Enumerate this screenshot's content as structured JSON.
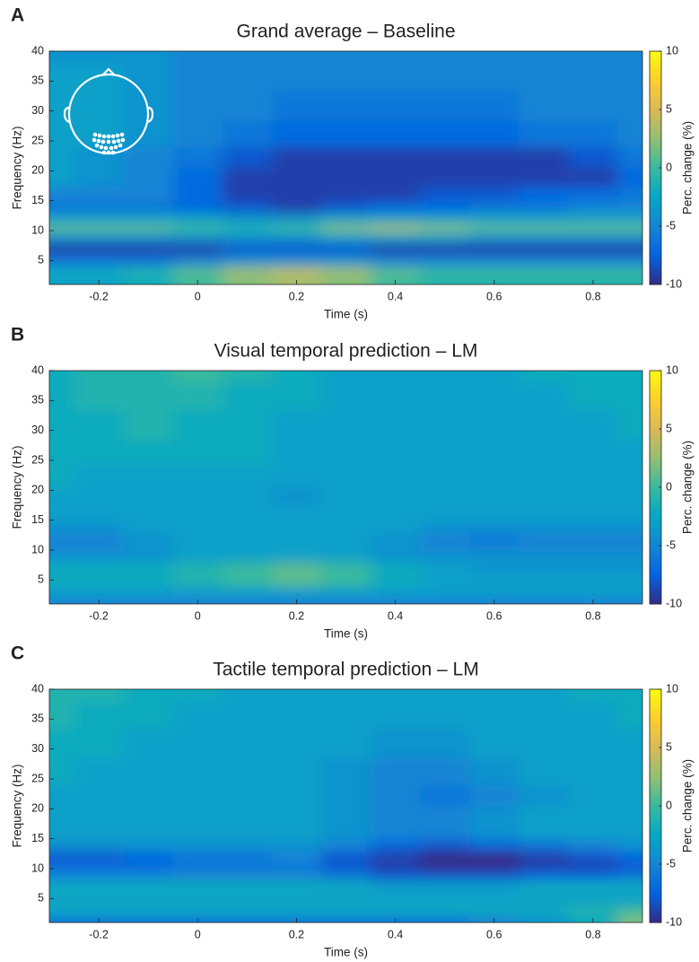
{
  "chart_data": [
    {
      "type": "heatmap",
      "panel": "A",
      "title": "Grand average – Baseline",
      "x_label": "Time (s)",
      "y_label": "Frequency (Hz)",
      "colorbar_label": "Perc. change (%)",
      "colormap": "parula",
      "x": [
        -0.3,
        -0.2,
        -0.1,
        0,
        0.1,
        0.2,
        0.3,
        0.4,
        0.5,
        0.6,
        0.7,
        0.8,
        0.9
      ],
      "y": [
        1.5,
        3,
        5,
        7,
        9,
        10.5,
        12,
        14,
        16,
        19,
        22,
        26,
        31,
        36,
        40
      ],
      "values": [
        [
          -3,
          -3,
          -2,
          0,
          2,
          3,
          2,
          0,
          -1,
          -1,
          -1,
          -1,
          -1
        ],
        [
          -2,
          -2,
          -1,
          1,
          3,
          4,
          3,
          1,
          0,
          0,
          0,
          0,
          0
        ],
        [
          -6,
          -6,
          -6,
          -5,
          -4,
          -4,
          -4,
          -5,
          -5,
          -5,
          -5,
          -5,
          -5
        ],
        [
          -9,
          -9,
          -9,
          -9,
          -8,
          -8,
          -8,
          -9,
          -9,
          -9,
          -9,
          -9,
          -9
        ],
        [
          -4,
          -4,
          -4,
          -4,
          -4,
          -4,
          -3,
          -3,
          -3,
          -4,
          -4,
          -4,
          -4
        ],
        [
          1,
          1,
          1,
          0,
          -1,
          0,
          2,
          3,
          2,
          1,
          1,
          1,
          1
        ],
        [
          -3,
          -3,
          -3,
          -3,
          -4,
          -4,
          -3,
          -3,
          -3,
          -3,
          -3,
          -3,
          -3
        ],
        [
          -6,
          -6,
          -6,
          -7,
          -8,
          -9,
          -8,
          -7,
          -7,
          -6,
          -6,
          -5,
          -5
        ],
        [
          -5,
          -5,
          -5,
          -7,
          -9,
          -9,
          -9,
          -9,
          -8,
          -8,
          -7,
          -7,
          -6
        ],
        [
          -3,
          -4,
          -5,
          -7,
          -9,
          -9,
          -9,
          -9,
          -9,
          -9,
          -9,
          -9,
          -7
        ],
        [
          -3,
          -4,
          -5,
          -6,
          -8,
          -9,
          -9,
          -9,
          -9,
          -9,
          -9,
          -8,
          -6
        ],
        [
          -3,
          -3,
          -4,
          -5,
          -6,
          -7,
          -7,
          -7,
          -7,
          -7,
          -6,
          -6,
          -5
        ],
        [
          -3,
          -3,
          -4,
          -5,
          -5,
          -6,
          -6,
          -6,
          -6,
          -6,
          -5,
          -5,
          -5
        ],
        [
          -3,
          -3,
          -4,
          -5,
          -5,
          -5,
          -5,
          -5,
          -5,
          -5,
          -5,
          -5,
          -5
        ],
        [
          -4,
          -4,
          -4,
          -5,
          -5,
          -5,
          -5,
          -5,
          -5,
          -5,
          -5,
          -5,
          -5
        ]
      ],
      "xlim": [
        -0.3,
        0.9
      ],
      "ylim": [
        1,
        40
      ],
      "clim": [
        -10,
        10
      ],
      "xticks": [
        -0.2,
        0,
        0.2,
        0.4,
        0.6,
        0.8
      ],
      "yticks": [
        5,
        10,
        15,
        20,
        25,
        30,
        35,
        40
      ],
      "cticks": [
        -10,
        -5,
        0,
        5,
        10
      ]
    },
    {
      "type": "heatmap",
      "panel": "B",
      "title": "Visual temporal prediction – LM",
      "x_label": "Time (s)",
      "y_label": "Frequency (Hz)",
      "colorbar_label": "Perc. change (%)",
      "colormap": "parula",
      "x": [
        -0.3,
        -0.2,
        -0.1,
        0,
        0.1,
        0.2,
        0.3,
        0.4,
        0.5,
        0.6,
        0.7,
        0.8,
        0.9
      ],
      "y": [
        1.5,
        3,
        5,
        7,
        9,
        10.5,
        12,
        14,
        16,
        19,
        22,
        26,
        31,
        36,
        40
      ],
      "values": [
        [
          -5,
          -5,
          -5,
          -5,
          -5,
          -5,
          -5,
          -5,
          -5,
          -5,
          -5,
          -5,
          -5
        ],
        [
          -3,
          -3,
          -3,
          -3,
          -3,
          -3,
          -3,
          -3,
          -3,
          -3,
          -3,
          -3,
          -3
        ],
        [
          -2,
          -2,
          -2,
          -1,
          0,
          1,
          0,
          -2,
          -3,
          -3,
          -3,
          -3,
          -3
        ],
        [
          -2,
          -2,
          -2,
          -1,
          0,
          1,
          0,
          -2,
          -3,
          -4,
          -4,
          -4,
          -4
        ],
        [
          -4,
          -4,
          -4,
          -3,
          -3,
          -3,
          -3,
          -4,
          -4,
          -4,
          -4,
          -4,
          -4
        ],
        [
          -5,
          -5,
          -4,
          -3,
          -3,
          -3,
          -3,
          -4,
          -5,
          -5,
          -5,
          -5,
          -5
        ],
        [
          -5,
          -5,
          -4,
          -3,
          -3,
          -3,
          -3,
          -4,
          -5,
          -6,
          -5,
          -5,
          -5
        ],
        [
          -4,
          -4,
          -3,
          -3,
          -3,
          -3,
          -3,
          -3,
          -4,
          -4,
          -4,
          -4,
          -4
        ],
        [
          -3,
          -3,
          -3,
          -3,
          -3,
          -3,
          -3,
          -3,
          -3,
          -3,
          -3,
          -3,
          -3
        ],
        [
          -3,
          -3,
          -3,
          -3,
          -3,
          -4,
          -3,
          -3,
          -3,
          -3,
          -3,
          -3,
          -3
        ],
        [
          -2,
          -3,
          -3,
          -3,
          -3,
          -3,
          -3,
          -3,
          -3,
          -3,
          -3,
          -3,
          -3
        ],
        [
          -2,
          -2,
          -2,
          -2,
          -2,
          -3,
          -3,
          -3,
          -3,
          -3,
          -3,
          -3,
          -3
        ],
        [
          -2,
          -2,
          -1,
          -2,
          -2,
          -3,
          -3,
          -3,
          -3,
          -3,
          -3,
          -3,
          -2
        ],
        [
          -2,
          -1,
          -1,
          -1,
          -2,
          -2,
          -3,
          -3,
          -3,
          -3,
          -3,
          -2,
          -2
        ],
        [
          -2,
          -1,
          -1,
          0,
          -1,
          -2,
          -3,
          -3,
          -3,
          -3,
          -2,
          -2,
          -2
        ]
      ],
      "xlim": [
        -0.3,
        0.9
      ],
      "ylim": [
        1,
        40
      ],
      "clim": [
        -10,
        10
      ],
      "xticks": [
        -0.2,
        0,
        0.2,
        0.4,
        0.6,
        0.8
      ],
      "yticks": [
        5,
        10,
        15,
        20,
        25,
        30,
        35,
        40
      ],
      "cticks": [
        -10,
        -5,
        0,
        5,
        10
      ]
    },
    {
      "type": "heatmap",
      "panel": "C",
      "title": "Tactile temporal prediction – LM",
      "x_label": "Time (s)",
      "y_label": "Frequency (Hz)",
      "colorbar_label": "Perc. change (%)",
      "colormap": "parula",
      "x": [
        -0.3,
        -0.2,
        -0.1,
        0,
        0.1,
        0.2,
        0.3,
        0.4,
        0.5,
        0.6,
        0.7,
        0.8,
        0.9
      ],
      "y": [
        1.5,
        3,
        5,
        7,
        9,
        10.5,
        12,
        14,
        16,
        19,
        22,
        26,
        31,
        36,
        40
      ],
      "values": [
        [
          -6,
          -6,
          -6,
          -6,
          -6,
          -6,
          -6,
          -6,
          -6,
          -5,
          -4,
          -2,
          2
        ],
        [
          -2,
          -2,
          -2,
          -2,
          -2,
          -2,
          -2,
          -2,
          -2,
          -2,
          -2,
          -1,
          0
        ],
        [
          -3,
          -3,
          -3,
          -3,
          -3,
          -3,
          -3,
          -3,
          -3,
          -3,
          -3,
          -3,
          -3
        ],
        [
          -2,
          -2,
          -2,
          -2,
          -2,
          -2,
          -2,
          -3,
          -3,
          -3,
          -2,
          -2,
          -2
        ],
        [
          -5,
          -5,
          -5,
          -5,
          -5,
          -5,
          -6,
          -8,
          -8,
          -8,
          -7,
          -7,
          -6
        ],
        [
          -7,
          -7,
          -7,
          -6,
          -6,
          -6,
          -8,
          -9,
          -10,
          -10,
          -9,
          -9,
          -8
        ],
        [
          -8,
          -8,
          -7,
          -6,
          -6,
          -5,
          -8,
          -9,
          -10,
          -10,
          -9,
          -8,
          -7
        ],
        [
          -4,
          -4,
          -4,
          -4,
          -4,
          -4,
          -5,
          -7,
          -8,
          -7,
          -6,
          -5,
          -4
        ],
        [
          -3,
          -3,
          -3,
          -3,
          -3,
          -3,
          -4,
          -5,
          -5,
          -4,
          -3,
          -3,
          -3
        ],
        [
          -3,
          -3,
          -3,
          -3,
          -3,
          -3,
          -4,
          -5,
          -5,
          -4,
          -3,
          -3,
          -3
        ],
        [
          -3,
          -3,
          -3,
          -3,
          -3,
          -3,
          -4,
          -5,
          -6,
          -5,
          -4,
          -3,
          -3
        ],
        [
          -2,
          -3,
          -3,
          -3,
          -3,
          -3,
          -4,
          -5,
          -5,
          -4,
          -3,
          -3,
          -3
        ],
        [
          -2,
          -2,
          -3,
          -3,
          -3,
          -3,
          -3,
          -4,
          -4,
          -3,
          -3,
          -3,
          -3
        ],
        [
          -1,
          -2,
          -2,
          -3,
          -3,
          -3,
          -3,
          -3,
          -3,
          -3,
          -3,
          -3,
          -2
        ],
        [
          -1,
          -1,
          -2,
          -2,
          -3,
          -3,
          -3,
          -3,
          -3,
          -3,
          -3,
          -2,
          -2
        ]
      ],
      "xlim": [
        -0.3,
        0.9
      ],
      "ylim": [
        1,
        40
      ],
      "clim": [
        -10,
        10
      ],
      "xticks": [
        -0.2,
        0,
        0.2,
        0.4,
        0.6,
        0.8
      ],
      "yticks": [
        5,
        10,
        15,
        20,
        25,
        30,
        35,
        40
      ],
      "cticks": [
        -10,
        -5,
        0,
        5,
        10
      ]
    }
  ]
}
